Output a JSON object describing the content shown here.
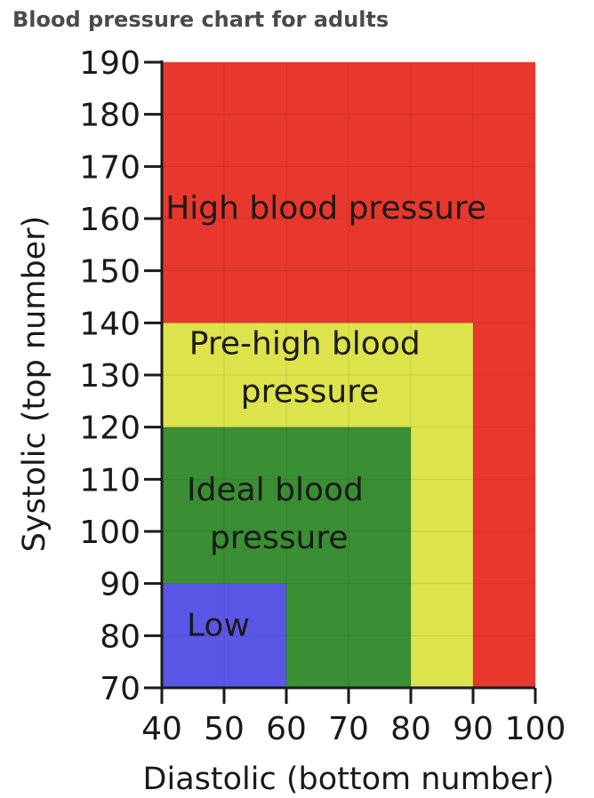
{
  "page": {
    "title": "Blood pressure chart for adults"
  },
  "chart_data": {
    "type": "heatmap",
    "xlabel": "Diastolic (bottom number)",
    "ylabel": "Systolic (top number)",
    "xlim": [
      40,
      100
    ],
    "ylim": [
      70,
      190
    ],
    "x_ticks": [
      40,
      50,
      60,
      70,
      80,
      90,
      100
    ],
    "y_ticks": [
      70,
      80,
      90,
      100,
      110,
      120,
      130,
      140,
      150,
      160,
      170,
      180,
      190
    ],
    "grid": true,
    "zones": [
      {
        "id": "high",
        "x_max": 100,
        "y_max": 190,
        "color": "#e8372d",
        "label_lines": [
          "High blood pressure"
        ],
        "label_at": [
          40.6,
          160
        ]
      },
      {
        "id": "pre-high",
        "x_max": 90,
        "y_max": 140,
        "color": "#dde34a",
        "label_lines": [
          "Pre-high blood",
          "pressure"
        ],
        "label_at": [
          44.4,
          134
        ]
      },
      {
        "id": "ideal",
        "x_max": 80,
        "y_max": 120,
        "color": "#3a8e33",
        "label_lines": [
          "Ideal blood",
          "pressure"
        ],
        "label_at": [
          44,
          106
        ]
      },
      {
        "id": "low",
        "x_max": 60,
        "y_max": 90,
        "color": "#5b57e6",
        "label_lines": [
          "Low"
        ],
        "label_at": [
          44,
          80
        ]
      }
    ]
  }
}
